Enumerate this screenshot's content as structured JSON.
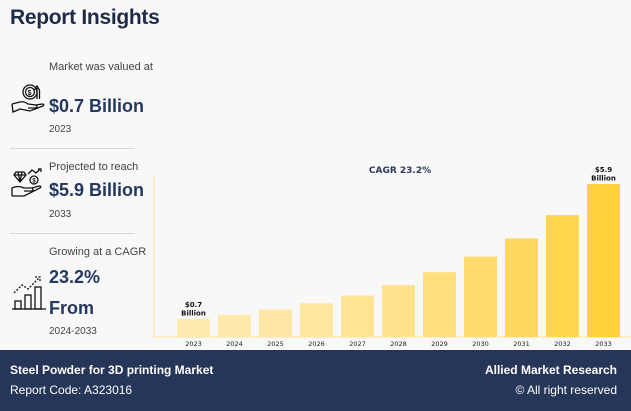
{
  "page": {
    "title": "Report Insights"
  },
  "stats": [
    {
      "label": "Market was valued at",
      "value": "$0.7 Billion",
      "year": "2023",
      "icon": "money-in-hand-icon"
    },
    {
      "label": "Projected to reach",
      "value": "$5.9 Billion",
      "year": "2033",
      "icon": "diamond-money-hand-icon"
    },
    {
      "label": "Growing at a CAGR",
      "value": "23.2%",
      "value2": "From",
      "year": "2024-2033",
      "icon": "growth-bar-chart-icon"
    }
  ],
  "footer": {
    "report_name": "Steel Powder for 3D printing Market",
    "report_code": "Report Code: A323016",
    "company": "Allied Market Research",
    "rights": "© All right reserved"
  },
  "colors": {
    "footer_bg": "#253658",
    "accent": "#24375f",
    "bar_light": "#ffeab0",
    "bar_dark": "#ffd23a"
  },
  "chart_data": {
    "type": "bar",
    "title": "CAGR 23.2%",
    "xlabel": "",
    "ylabel": "",
    "categories": [
      "2023",
      "2024",
      "2025",
      "2026",
      "2027",
      "2028",
      "2029",
      "2030",
      "2031",
      "2032",
      "2033"
    ],
    "values": [
      0.7,
      0.86,
      1.06,
      1.3,
      1.6,
      2.0,
      2.5,
      3.1,
      3.8,
      4.7,
      5.9
    ],
    "unit": "Billion USD",
    "ylim": [
      0,
      5.9
    ],
    "grid": false,
    "data_labels": [
      {
        "category": "2023",
        "line1": "$0.7",
        "line2": "Billion"
      },
      {
        "category": "2033",
        "line1": "$5.9",
        "line2": "Billion"
      }
    ]
  }
}
